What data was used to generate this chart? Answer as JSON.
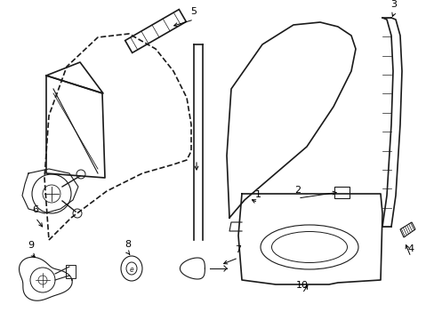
{
  "bg_color": "#ffffff",
  "line_color": "#1a1a1a",
  "fig_width": 4.89,
  "fig_height": 3.6,
  "dpi": 100
}
